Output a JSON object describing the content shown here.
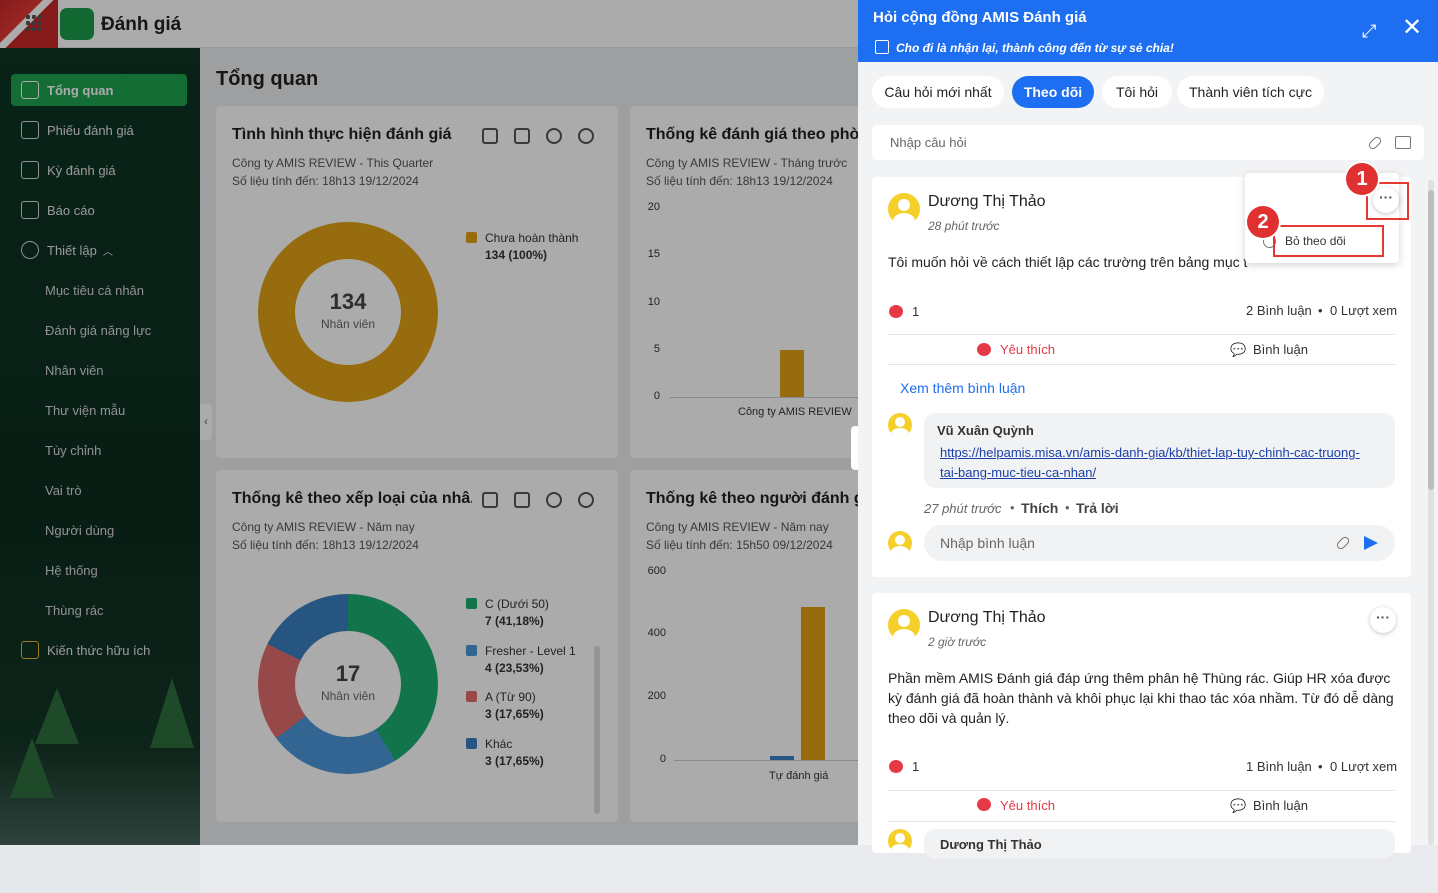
{
  "app": {
    "name": "Đánh giá"
  },
  "sidebar": {
    "items": [
      {
        "label": "Tổng quan",
        "icon": "chart-icon"
      },
      {
        "label": "Phiếu đánh giá",
        "icon": "layers-icon"
      },
      {
        "label": "Kỳ đánh giá",
        "icon": "form-icon"
      },
      {
        "label": "Báo cáo",
        "icon": "report-icon"
      },
      {
        "label": "Thiết lập",
        "icon": "gear-icon"
      }
    ],
    "sub": [
      "Mục tiêu cá nhân",
      "Đánh giá năng lực",
      "Nhân viên",
      "Thư viện mẫu",
      "Tùy chỉnh",
      "Vai trò",
      "Người dùng",
      "Hệ thống",
      "Thùng rác"
    ],
    "knowledge": "Kiến thức hữu ích"
  },
  "main": {
    "title": "Tổng quan",
    "cards": [
      {
        "title": "Tình hình thực hiện đánh giá",
        "sub1": "Công ty AMIS REVIEW - This Quarter",
        "sub2": "Số liệu tính đến: 18h13 19/12/2024"
      },
      {
        "title": "Thống kê đánh giá theo phòn",
        "sub1": "Công ty AMIS REVIEW - Tháng trước",
        "sub2": "Số liệu tính đến: 18h13 19/12/2024"
      },
      {
        "title": "Thống kê theo xếp loại của nhâ...",
        "sub1": "Công ty AMIS REVIEW - Năm nay",
        "sub2": "Số liệu tính đến: 18h13 19/12/2024"
      },
      {
        "title": "Thống kê theo người đánh giá",
        "sub1": "Công ty AMIS REVIEW - Năm nay",
        "sub2": "Số liệu tính đến: 15h50 09/12/2024"
      }
    ]
  },
  "chart_data": [
    {
      "type": "pie",
      "center_value": "134",
      "center_label": "Nhân viên",
      "slices": [
        {
          "label": "Chưa hoàn thành",
          "value_text": "134 (100%)",
          "value": 134,
          "color": "#e0a117"
        }
      ]
    },
    {
      "type": "bar",
      "categories": [
        "Công ty AMIS REVIEW"
      ],
      "values": [
        5
      ],
      "ylim": [
        0,
        20
      ],
      "yticks": [
        "20",
        "15",
        "10",
        "5",
        "0"
      ]
    },
    {
      "type": "pie",
      "center_value": "17",
      "center_label": "Nhân viên",
      "slices": [
        {
          "label": "C (Dưới 50)",
          "value_text": "7 (41,18%)",
          "value": 7,
          "color": "#1aae6f"
        },
        {
          "label": "Fresher - Level 1",
          "value_text": "4 (23,53%)",
          "value": 4,
          "color": "#4b97d8"
        },
        {
          "label": "A (Từ 90)",
          "value_text": "3 (17,65%)",
          "value": 3,
          "color": "#e26d6d"
        },
        {
          "label": "Khác",
          "value_text": "3 (17,65%)",
          "value": 3,
          "color": "#3a7fc0"
        }
      ]
    },
    {
      "type": "bar",
      "categories": [
        "Tự đánh giá"
      ],
      "values": [
        485
      ],
      "values2": [
        12
      ],
      "ylim": [
        0,
        600
      ],
      "yticks": [
        "600",
        "400",
        "200",
        "0"
      ]
    }
  ],
  "panel": {
    "title": "Hỏi cộng đồng AMIS Đánh giá",
    "subtitle": "Cho đi là nhận lại, thành công đến từ sự sẻ chia!",
    "tabs": [
      "Câu hỏi mới nhất",
      "Theo dõi",
      "Tôi hỏi",
      "Thành viên tích cực"
    ],
    "ask_placeholder": "Nhập câu hỏi",
    "posts": [
      {
        "author": "Dương Thị Thảo",
        "time": "28 phút trước",
        "text": "Tôi muốn hỏi về cách thiết lập các trường trên bảng mục tiêu cá nhân",
        "likes": "1",
        "comments": "2 Bình luận",
        "views": "0 Lượt xem",
        "like_label": "Yêu thích",
        "comment_label": "Bình luận",
        "see_more": "Xem thêm bình luận",
        "comment": {
          "author": "Vũ Xuân Quỳnh",
          "link": "https://helpamis.misa.vn/amis-danh-gia/kb/thiet-lap-tuy-chinh-cac-truong-tai-bang-muc-tieu-ca-nhan/",
          "link_line1": "https://helpamis.misa.vn/amis-danh-gia/kb/thiet-lap-tuy-chinh-cac-truong-",
          "link_line2": "tai-bang-muc-tieu-ca-nhan/",
          "time": "27 phút trước",
          "like": "Thích",
          "reply": "Trả lời"
        },
        "comment_placeholder": "Nhập bình luận"
      },
      {
        "author": "Dương Thị Thảo",
        "time": "2 giờ trước",
        "text1": "Phần mềm AMIS Đánh giá đáp ứng thêm phân hệ Thùng rác. Giúp HR xóa được",
        "text2": "kỳ đánh giá đã hoàn thành và khôi phục lại khi thao tác xóa nhầm. Từ đó dễ dàng",
        "text3": "theo dõi và quản lý.",
        "likes": "1",
        "comments": "1 Bình luận",
        "views": "0 Lượt xem",
        "like_label": "Yêu thích",
        "comment_label": "Bình luận",
        "next_author": "Dương Thị Thảo"
      }
    ],
    "popup": {
      "unfollow": "Bỏ theo dõi"
    },
    "badges": [
      "1",
      "2"
    ]
  }
}
